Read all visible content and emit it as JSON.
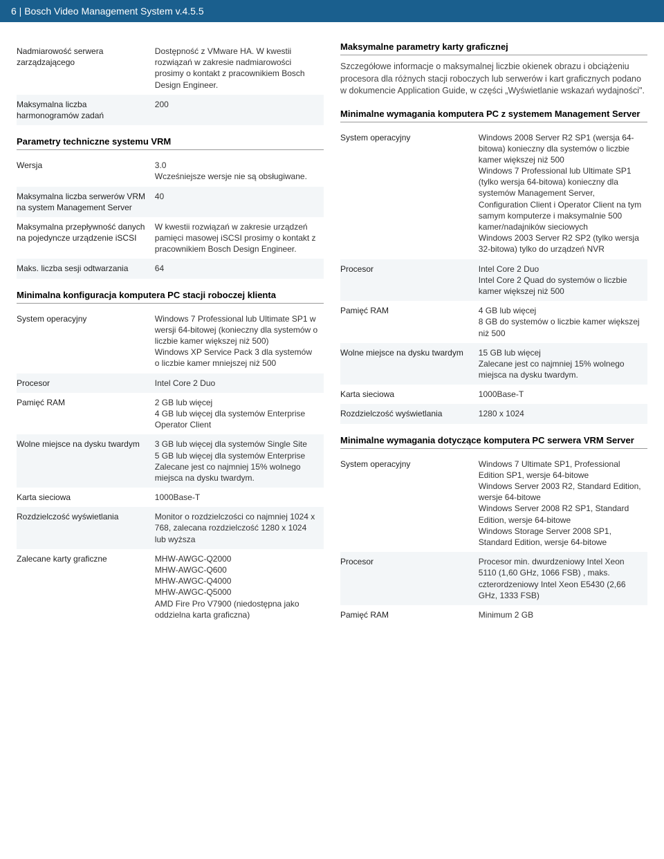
{
  "header": "6 | Bosch Video Management System v.4.5.5",
  "left": {
    "rows1": [
      {
        "k": "Nadmiarowość serwera zarządzającego",
        "v": "Dostępność z VMware HA. W kwestii rozwiązań w zakresie nadmiarowości prosimy o kontakt z pracownikiem Bosch Design Engineer."
      },
      {
        "k": "Maksymalna liczba harmonogramów zadań",
        "v": "200"
      }
    ],
    "title2": "Parametry techniczne systemu VRM",
    "rows2": [
      {
        "k": "Wersja",
        "v": "3.0\nWcześniejsze wersje nie są obsługiwane."
      },
      {
        "k": "Maksymalna liczba serwerów VRM na system Management Server",
        "v": "40"
      },
      {
        "k": "Maksymalna przepływność danych na pojedyncze urządzenie iSCSI",
        "v": "W kwestii rozwiązań w zakresie urządzeń pamięci masowej iSCSI prosimy o kontakt z pracownikiem Bosch Design Engineer."
      },
      {
        "k": "Maks. liczba sesji odtwarzania",
        "v": "64"
      }
    ],
    "title3": "Minimalna konfiguracja komputera PC stacji roboczej klienta",
    "rows3": [
      {
        "k": "System operacyjny",
        "v": "Windows 7 Professional lub Ultimate SP1 w wersji 64-bitowej (konieczny dla systemów o liczbie kamer większej niż 500)\nWindows XP Service Pack 3 dla systemów o liczbie kamer mniejszej niż 500"
      },
      {
        "k": "Procesor",
        "v": "Intel Core 2 Duo"
      },
      {
        "k": "Pamięć RAM",
        "v": "2 GB lub więcej\n4 GB lub więcej dla systemów Enterprise Operator Client"
      },
      {
        "k": "Wolne miejsce na dysku twardym",
        "v": "3 GB lub więcej dla systemów Single Site\n5 GB lub więcej dla systemów Enterprise\nZalecane jest co najmniej 15% wolnego miejsca na dysku twardym."
      },
      {
        "k": "Karta sieciowa",
        "v": "1000Base-T"
      },
      {
        "k": "Rozdzielczość wyświetlania",
        "v": "Monitor o rozdzielczości co najmniej 1024 x 768, zalecana rozdzielczość 1280 x 1024 lub wyższa"
      },
      {
        "k": "Zalecane karty graficzne",
        "v": "MHW-AWGC-Q2000\nMHW-AWGC-Q600\nMHW-AWGC-Q4000\nMHW-AWGC-Q5000\nAMD Fire Pro V7900 (niedostępna jako oddzielna karta graficzna)"
      }
    ]
  },
  "right": {
    "titleA": "Maksymalne parametry karty graficznej",
    "paraA": "Szczegółowe informacje o maksymalnej liczbie okienek obrazu i obciążeniu procesora dla różnych stacji roboczych lub serwerów i kart graficznych podano w dokumencie Application Guide, w części „Wyświetlanie wskazań wydajności\".",
    "titleB": "Minimalne wymagania komputera PC z systemem Management Server",
    "rowsB": [
      {
        "k": "System operacyjny",
        "v": "Windows 2008 Server R2 SP1 (wersja 64-bitowa) konieczny dla systemów o liczbie kamer większej niż 500\nWindows 7 Professional lub Ultimate SP1 (tylko wersja 64-bitowa) konieczny dla systemów Management Server, Configuration Client i Operator Client na tym samym komputerze i maksymalnie 500 kamer/nadajników sieciowych\nWindows 2003 Server R2 SP2 (tylko wersja 32-bitowa) tylko do urządzeń NVR"
      },
      {
        "k": "Procesor",
        "v": "Intel Core 2 Duo\nIntel Core 2 Quad do systemów o liczbie kamer większej niż 500"
      },
      {
        "k": "Pamięć RAM",
        "v": "4 GB lub więcej\n8 GB do systemów o liczbie kamer większej niż 500"
      },
      {
        "k": "Wolne miejsce na dysku twardym",
        "v": "15 GB lub więcej\nZalecane jest co najmniej 15% wolnego miejsca na dysku twardym."
      },
      {
        "k": "Karta sieciowa",
        "v": "1000Base-T"
      },
      {
        "k": "Rozdzielczość wyświetlania",
        "v": "1280 x 1024"
      }
    ],
    "titleC": "Minimalne wymagania dotyczące komputera PC serwera VRM Server",
    "rowsC": [
      {
        "k": "System operacyjny",
        "v": "Windows 7 Ultimate SP1, Professional Edition SP1, wersje 64-bitowe\nWindows Server 2003 R2, Standard Edition, wersje 64-bitowe\nWindows Server 2008 R2 SP1, Standard Edition, wersje 64-bitowe\nWindows Storage Server 2008 SP1, Standard Edition, wersje 64-bitowe"
      },
      {
        "k": "Procesor",
        "v": "Procesor min. dwurdzeniowy Intel Xeon 5110 (1,60 GHz, 1066 FSB) , maks. czterordzeniowy Intel Xeon E5430 (2,66 GHz, 1333 FSB)"
      },
      {
        "k": "Pamięć RAM",
        "v": "Minimum 2 GB"
      }
    ]
  }
}
